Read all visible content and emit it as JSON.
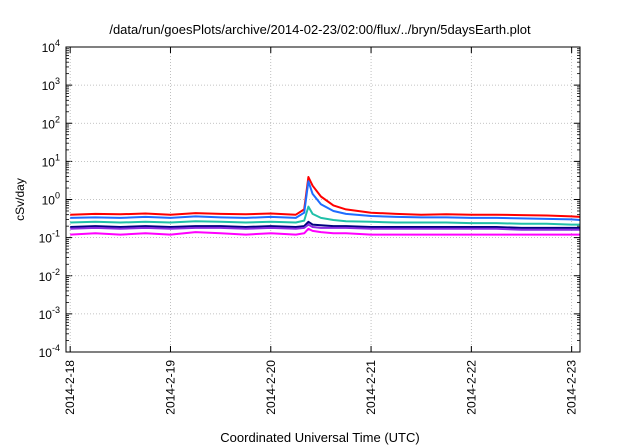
{
  "chart_data": {
    "type": "line",
    "title": "/data/run/goesPlots/archive/2014-02-23/02:00/flux/../bryn/5daysEarth.plot",
    "xlabel": "Coordinated Universal Time (UTC)",
    "ylabel": "cSv/day",
    "y_scale": "log",
    "ylim": [
      0.0001,
      10000
    ],
    "y_ticks": [
      {
        "base": "10",
        "exp": "-4"
      },
      {
        "base": "10",
        "exp": "-3"
      },
      {
        "base": "10",
        "exp": "-2"
      },
      {
        "base": "10",
        "exp": "-1"
      },
      {
        "base": "10",
        "exp": "0"
      },
      {
        "base": "10",
        "exp": "1"
      },
      {
        "base": "10",
        "exp": "2"
      },
      {
        "base": "10",
        "exp": "3"
      },
      {
        "base": "10",
        "exp": "4"
      }
    ],
    "x_ticks": [
      "2014-2-18",
      "2014-2-19",
      "2014-2-20",
      "2014-2-21",
      "2014-2-22",
      "2014-2-23"
    ],
    "xlim": [
      "2014-2-17 23:00",
      "2014-2-23 02:00"
    ],
    "grid": true,
    "x": [
      "2014-2-18 00:00",
      "2014-2-18 06:00",
      "2014-2-18 12:00",
      "2014-2-18 18:00",
      "2014-2-19 00:00",
      "2014-2-19 06:00",
      "2014-2-19 12:00",
      "2014-2-19 18:00",
      "2014-2-20 00:00",
      "2014-2-20 06:00",
      "2014-2-20 08:00",
      "2014-2-20 09:00",
      "2014-2-20 10:00",
      "2014-2-20 12:00",
      "2014-2-20 15:00",
      "2014-2-20 18:00",
      "2014-2-21 00:00",
      "2014-2-21 06:00",
      "2014-2-21 12:00",
      "2014-2-21 18:00",
      "2014-2-22 00:00",
      "2014-2-22 06:00",
      "2014-2-22 12:00",
      "2014-2-22 18:00",
      "2014-2-23 00:00",
      "2014-2-23 02:00"
    ],
    "series": [
      {
        "color": "#ff0000",
        "values": [
          0.4,
          0.42,
          0.41,
          0.43,
          0.4,
          0.44,
          0.42,
          0.41,
          0.43,
          0.4,
          0.55,
          3.9,
          2.3,
          1.2,
          0.7,
          0.55,
          0.45,
          0.42,
          0.4,
          0.41,
          0.4,
          0.4,
          0.39,
          0.38,
          0.36,
          0.35
        ]
      },
      {
        "color": "#1f6cff",
        "values": [
          0.33,
          0.34,
          0.33,
          0.35,
          0.33,
          0.36,
          0.34,
          0.33,
          0.35,
          0.33,
          0.45,
          3.0,
          1.4,
          0.75,
          0.5,
          0.42,
          0.37,
          0.35,
          0.34,
          0.34,
          0.33,
          0.33,
          0.32,
          0.31,
          0.3,
          0.29
        ]
      },
      {
        "color": "#20c0a8",
        "values": [
          0.25,
          0.26,
          0.25,
          0.26,
          0.25,
          0.27,
          0.26,
          0.25,
          0.26,
          0.25,
          0.28,
          0.65,
          0.42,
          0.33,
          0.29,
          0.27,
          0.26,
          0.25,
          0.25,
          0.25,
          0.24,
          0.24,
          0.23,
          0.23,
          0.22,
          0.22
        ]
      },
      {
        "color": "#000080",
        "values": [
          0.19,
          0.2,
          0.19,
          0.2,
          0.19,
          0.2,
          0.2,
          0.19,
          0.2,
          0.19,
          0.2,
          0.26,
          0.22,
          0.21,
          0.2,
          0.2,
          0.19,
          0.19,
          0.19,
          0.19,
          0.19,
          0.19,
          0.18,
          0.18,
          0.18,
          0.18
        ]
      },
      {
        "color": "#8a2be2",
        "values": [
          0.17,
          0.18,
          0.17,
          0.18,
          0.17,
          0.18,
          0.18,
          0.17,
          0.18,
          0.17,
          0.18,
          0.22,
          0.19,
          0.18,
          0.18,
          0.18,
          0.17,
          0.17,
          0.17,
          0.17,
          0.17,
          0.17,
          0.16,
          0.16,
          0.16,
          0.16
        ]
      },
      {
        "color": "#ff00ff",
        "values": [
          0.12,
          0.13,
          0.12,
          0.13,
          0.12,
          0.14,
          0.13,
          0.12,
          0.13,
          0.12,
          0.13,
          0.17,
          0.15,
          0.14,
          0.13,
          0.13,
          0.12,
          0.12,
          0.12,
          0.12,
          0.12,
          0.12,
          0.12,
          0.12,
          0.12,
          0.12
        ]
      }
    ]
  }
}
